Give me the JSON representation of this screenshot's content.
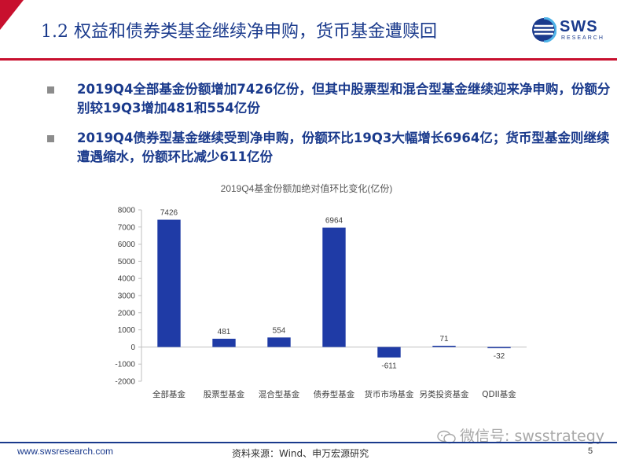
{
  "header": {
    "title": "1.2 权益和债券类基金继续净申购，货币基金遭赎回",
    "logo_text": "SWS",
    "logo_sub": "RESEARCH"
  },
  "bullets": [
    "2019Q4全部基金份额增加7426亿份，但其中股票型和混合型基金继续迎来净申购，份额分别较19Q3增加481和554亿份",
    "2019Q4债券型基金继续受到净申购，份额环比19Q3大幅增长6964亿；货币型基金则继续遭遇缩水，份额环比减少611亿份"
  ],
  "chart_data": {
    "type": "bar",
    "title": "2019Q4基金份额加绝对值环比变化(亿份)",
    "categories": [
      "全部基金",
      "股票型基金",
      "混合型基金",
      "债券型基金",
      "货币市场基金",
      "另类投资基金",
      "QDII基金"
    ],
    "values": [
      7426,
      481,
      554,
      6964,
      -611,
      71,
      -32
    ],
    "ylim": [
      -2000,
      8000
    ],
    "yticks": [
      8000,
      7000,
      6000,
      5000,
      4000,
      3000,
      2000,
      1000,
      0,
      -1000,
      -2000
    ],
    "xlabel": "",
    "ylabel": "",
    "grid": false,
    "bar_color": "#1f3ba6",
    "bar_color_small": "#2c4a9e"
  },
  "footer": {
    "url": "www.swsresearch.com",
    "source": "资料来源：Wind、申万宏源研究",
    "page": "5",
    "watermark": "微信号: swsstrategy"
  },
  "colors": {
    "brand_red": "#c8102e",
    "brand_blue": "#1a3a8c"
  }
}
